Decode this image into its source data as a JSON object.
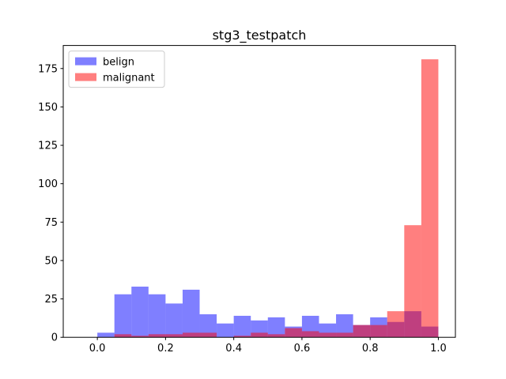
{
  "chart_data": {
    "type": "histogram",
    "title": "stg3_testpatch",
    "xlabel": "",
    "ylabel": "",
    "xlim": [
      -0.1,
      1.05
    ],
    "ylim": [
      0,
      190
    ],
    "xticks": [
      0.0,
      0.2,
      0.4,
      0.6,
      0.8,
      1.0
    ],
    "xtick_labels": [
      "0.0",
      "0.2",
      "0.4",
      "0.6",
      "0.8",
      "1.0"
    ],
    "yticks": [
      0,
      25,
      50,
      75,
      100,
      125,
      150,
      175
    ],
    "ytick_labels": [
      "0",
      "25",
      "50",
      "75",
      "100",
      "125",
      "150",
      "175"
    ],
    "bin_edges": [
      0.0,
      0.05,
      0.1,
      0.15,
      0.2,
      0.25,
      0.3,
      0.35,
      0.4,
      0.45,
      0.5,
      0.55,
      0.6,
      0.65,
      0.7,
      0.75,
      0.8,
      0.85,
      0.9,
      0.95,
      1.0
    ],
    "legend_position": "top-left",
    "series": [
      {
        "name": "belign",
        "color": "#0000ff",
        "alpha": 0.5,
        "values": [
          3,
          28,
          33,
          28,
          22,
          31,
          15,
          9,
          14,
          11,
          13,
          7,
          14,
          9,
          15,
          8,
          13,
          10,
          17,
          7
        ]
      },
      {
        "name": "malignant",
        "color": "#ff0000",
        "alpha": 0.5,
        "values": [
          0,
          2,
          1,
          2,
          2,
          3,
          3,
          0,
          1,
          3,
          2,
          6,
          4,
          3,
          3,
          8,
          8,
          17,
          73,
          181
        ]
      }
    ]
  }
}
